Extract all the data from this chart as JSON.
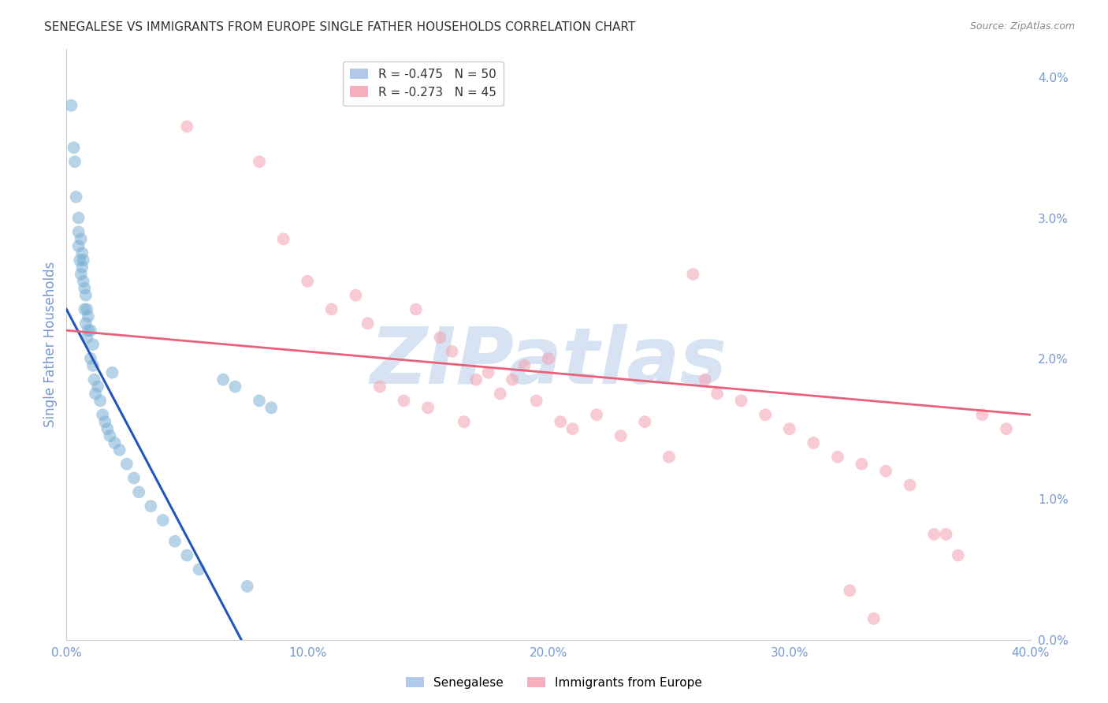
{
  "title": "SENEGALESE VS IMMIGRANTS FROM EUROPE SINGLE FATHER HOUSEHOLDS CORRELATION CHART",
  "source": "Source: ZipAtlas.com",
  "ylabel": "Single Father Households",
  "right_ytick_labels": [
    "0.0%",
    "1.0%",
    "2.0%",
    "3.0%",
    "4.0%"
  ],
  "right_ytick_values": [
    0.0,
    1.0,
    2.0,
    3.0,
    4.0
  ],
  "bottom_xtick_labels": [
    "0.0%",
    "10.0%",
    "20.0%",
    "30.0%",
    "40.0%"
  ],
  "bottom_xtick_values": [
    0.0,
    10.0,
    20.0,
    30.0,
    40.0
  ],
  "xlim": [
    0.0,
    40.0
  ],
  "ylim": [
    0.0,
    4.2
  ],
  "legend_entries": [
    {
      "label": "R = -0.475   N = 50",
      "color": "#aac4e8"
    },
    {
      "label": "R = -0.273   N = 45",
      "color": "#f4a8b8"
    }
  ],
  "watermark": "ZIPatlas",
  "watermark_color": "#d0dff0",
  "watermark_fontsize": 72,
  "senegalese_color": "#7bafd4",
  "europe_color": "#f4a0b0",
  "blue_line_color": "#2255bb",
  "pink_line_color": "#e8607a",
  "blue_scatter_x": [
    0.2,
    0.3,
    0.35,
    0.4,
    0.5,
    0.5,
    0.5,
    0.55,
    0.6,
    0.6,
    0.65,
    0.65,
    0.7,
    0.7,
    0.75,
    0.75,
    0.8,
    0.8,
    0.85,
    0.85,
    0.9,
    0.9,
    1.0,
    1.0,
    1.1,
    1.1,
    1.15,
    1.2,
    1.3,
    1.4,
    1.5,
    1.6,
    1.7,
    1.8,
    2.0,
    2.2,
    2.5,
    2.8,
    3.0,
    3.5,
    4.0,
    4.5,
    5.0,
    5.5,
    6.5,
    7.0,
    7.5,
    8.0,
    8.5,
    1.9
  ],
  "blue_scatter_y": [
    3.8,
    3.5,
    3.4,
    3.15,
    3.0,
    2.9,
    2.8,
    2.7,
    2.85,
    2.6,
    2.75,
    2.65,
    2.7,
    2.55,
    2.5,
    2.35,
    2.45,
    2.25,
    2.35,
    2.15,
    2.3,
    2.2,
    2.2,
    2.0,
    2.1,
    1.95,
    1.85,
    1.75,
    1.8,
    1.7,
    1.6,
    1.55,
    1.5,
    1.45,
    1.4,
    1.35,
    1.25,
    1.15,
    1.05,
    0.95,
    0.85,
    0.7,
    0.6,
    0.5,
    1.85,
    1.8,
    0.38,
    1.7,
    1.65,
    1.9
  ],
  "pink_scatter_x": [
    5.0,
    8.0,
    9.0,
    10.0,
    11.0,
    12.0,
    12.5,
    13.0,
    14.0,
    14.5,
    15.0,
    15.5,
    16.0,
    16.5,
    17.0,
    17.5,
    18.0,
    18.5,
    19.0,
    19.5,
    20.0,
    20.5,
    21.0,
    22.0,
    23.0,
    24.0,
    25.0,
    26.0,
    27.0,
    28.0,
    29.0,
    30.0,
    31.0,
    32.0,
    33.0,
    34.0,
    35.0,
    36.0,
    37.0,
    38.0,
    39.0,
    26.5,
    32.5,
    33.5,
    36.5
  ],
  "pink_scatter_y": [
    3.65,
    3.4,
    2.85,
    2.55,
    2.35,
    2.45,
    2.25,
    1.8,
    1.7,
    2.35,
    1.65,
    2.15,
    2.05,
    1.55,
    1.85,
    1.9,
    1.75,
    1.85,
    1.95,
    1.7,
    2.0,
    1.55,
    1.5,
    1.6,
    1.45,
    1.55,
    1.3,
    2.6,
    1.75,
    1.7,
    1.6,
    1.5,
    1.4,
    1.3,
    1.25,
    1.2,
    1.1,
    0.75,
    0.6,
    1.6,
    1.5,
    1.85,
    0.35,
    0.15,
    0.75
  ],
  "blue_line_intercept": 2.35,
  "blue_line_slope": -0.324,
  "pink_line_intercept": 2.2,
  "pink_line_slope": -0.015,
  "background_color": "#ffffff",
  "grid_color": "#cccccc",
  "title_color": "#333333",
  "axis_label_color": "#7799cc",
  "tick_label_color": "#7799cc"
}
